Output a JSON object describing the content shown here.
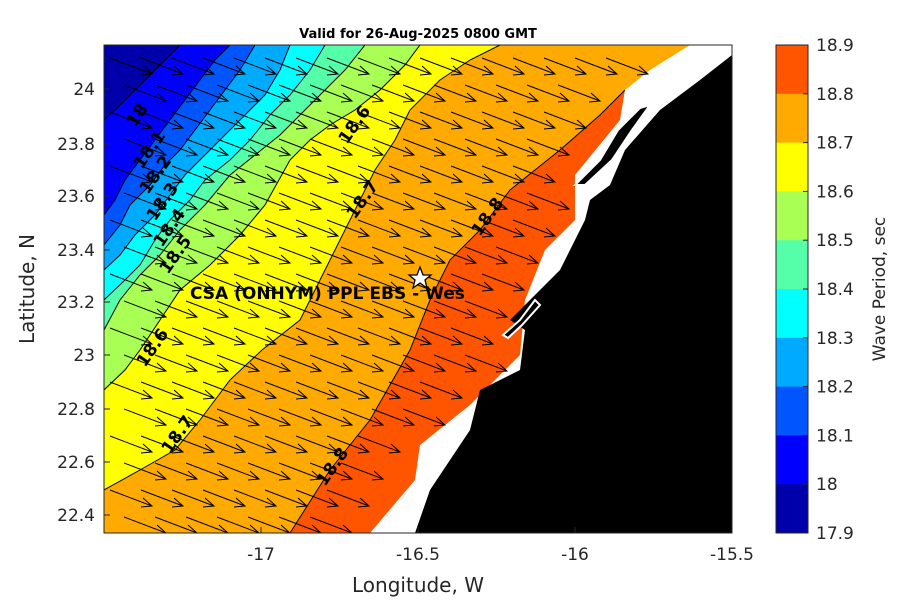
{
  "title": "Valid for 26-Aug-2025 0800 GMT",
  "xlabel": "Longitude, W",
  "ylabel": "Latitude, N",
  "colorbar_label": "Wave Period, sec",
  "site_label": "CSA (ONHYM) PPL EBS  - Wes",
  "x_ticks": [
    "-17",
    "-16.5",
    "-16",
    "-15.5"
  ],
  "y_ticks": [
    "24",
    "23.8",
    "23.6",
    "23.4",
    "23.2",
    "23",
    "22.8",
    "22.6",
    "22.4"
  ],
  "colorbar": {
    "ticks": [
      "18.9",
      "18.8",
      "18.7",
      "18.6",
      "18.5",
      "18.4",
      "18.3",
      "18.2",
      "18.1",
      "18",
      "17.9"
    ],
    "colors": [
      "#ff5500",
      "#ffaa00",
      "#ffff00",
      "#aaff55",
      "#55ffaa",
      "#00ffff",
      "#00aaff",
      "#0055ff",
      "#0000ff",
      "#0000aa"
    ]
  },
  "colors": {
    "land": "#000000",
    "coast_strip": "#ffffff",
    "arrow": "#000000"
  },
  "contour_labels": [
    "18",
    "18.1",
    "18.2",
    "18.3",
    "18.4",
    "18.5",
    "18.6",
    "18.6",
    "18.7",
    "18.7",
    "18.8",
    "18.8"
  ],
  "chart_data": {
    "type": "heatmap",
    "title": "Valid for 26-Aug-2025 0800 GMT",
    "xlabel": "Longitude, W",
    "ylabel": "Latitude, N",
    "xlim": [
      -17.5,
      -15.5
    ],
    "ylim": [
      22.33,
      24.17
    ],
    "variable": "Wave Period, sec",
    "colorbar_range": [
      17.9,
      18.9
    ],
    "contour_levels": [
      18,
      18.1,
      18.2,
      18.3,
      18.4,
      18.5,
      18.6,
      18.7,
      18.8
    ],
    "wave_direction": "toward east-southeast",
    "marker": {
      "symbol": "star",
      "lon": -16.5,
      "lat": 23.29
    }
  }
}
